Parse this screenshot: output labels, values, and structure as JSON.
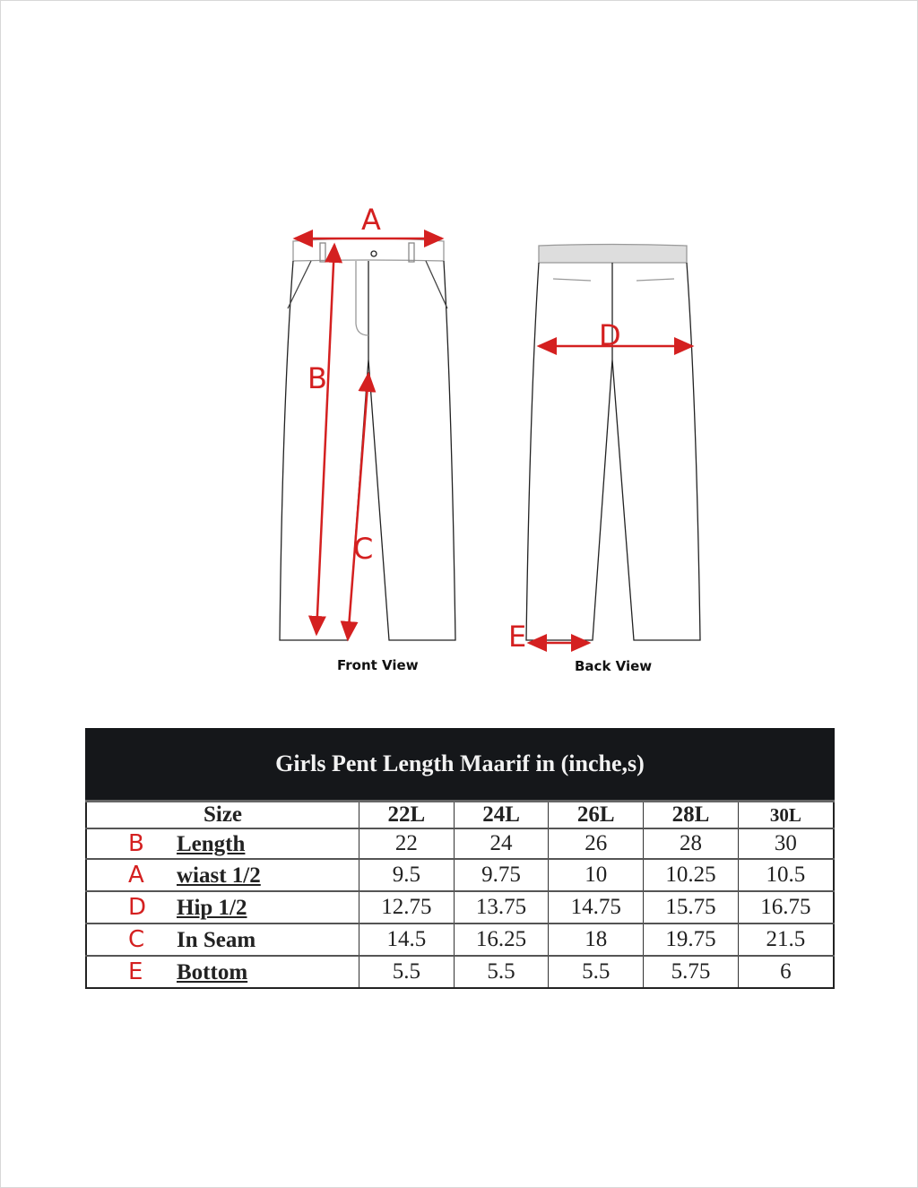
{
  "diagram": {
    "front_view_label": "Front View",
    "back_view_label": "Back View",
    "markers": {
      "A": "A",
      "B": "B",
      "C": "C",
      "D": "D",
      "E": "E"
    },
    "marker_color": "#d42020"
  },
  "table": {
    "title": "Girls Pent Length Maarif  in (inche,s)",
    "header": [
      "Size",
      "22L",
      "24L",
      "26L",
      "28L",
      "30L"
    ],
    "rows": [
      {
        "letter": "B",
        "label": "Length",
        "values": [
          "22",
          "24",
          "26",
          "28",
          "30"
        ]
      },
      {
        "letter": "A",
        "label": "wiast 1/2",
        "values": [
          "9.5",
          "9.75",
          "10",
          "10.25",
          "10.5"
        ]
      },
      {
        "letter": "D",
        "label": "Hip 1/2",
        "values": [
          "12.75",
          "13.75",
          "14.75",
          "15.75",
          "16.75"
        ]
      },
      {
        "letter": "C",
        "label": "In Seam",
        "values": [
          "14.5",
          "16.25",
          "18",
          "19.75",
          "21.5"
        ]
      },
      {
        "letter": "E",
        "label": "Bottom",
        "values": [
          "5.5",
          "5.5",
          "5.5",
          "5.75",
          "6"
        ]
      }
    ]
  }
}
